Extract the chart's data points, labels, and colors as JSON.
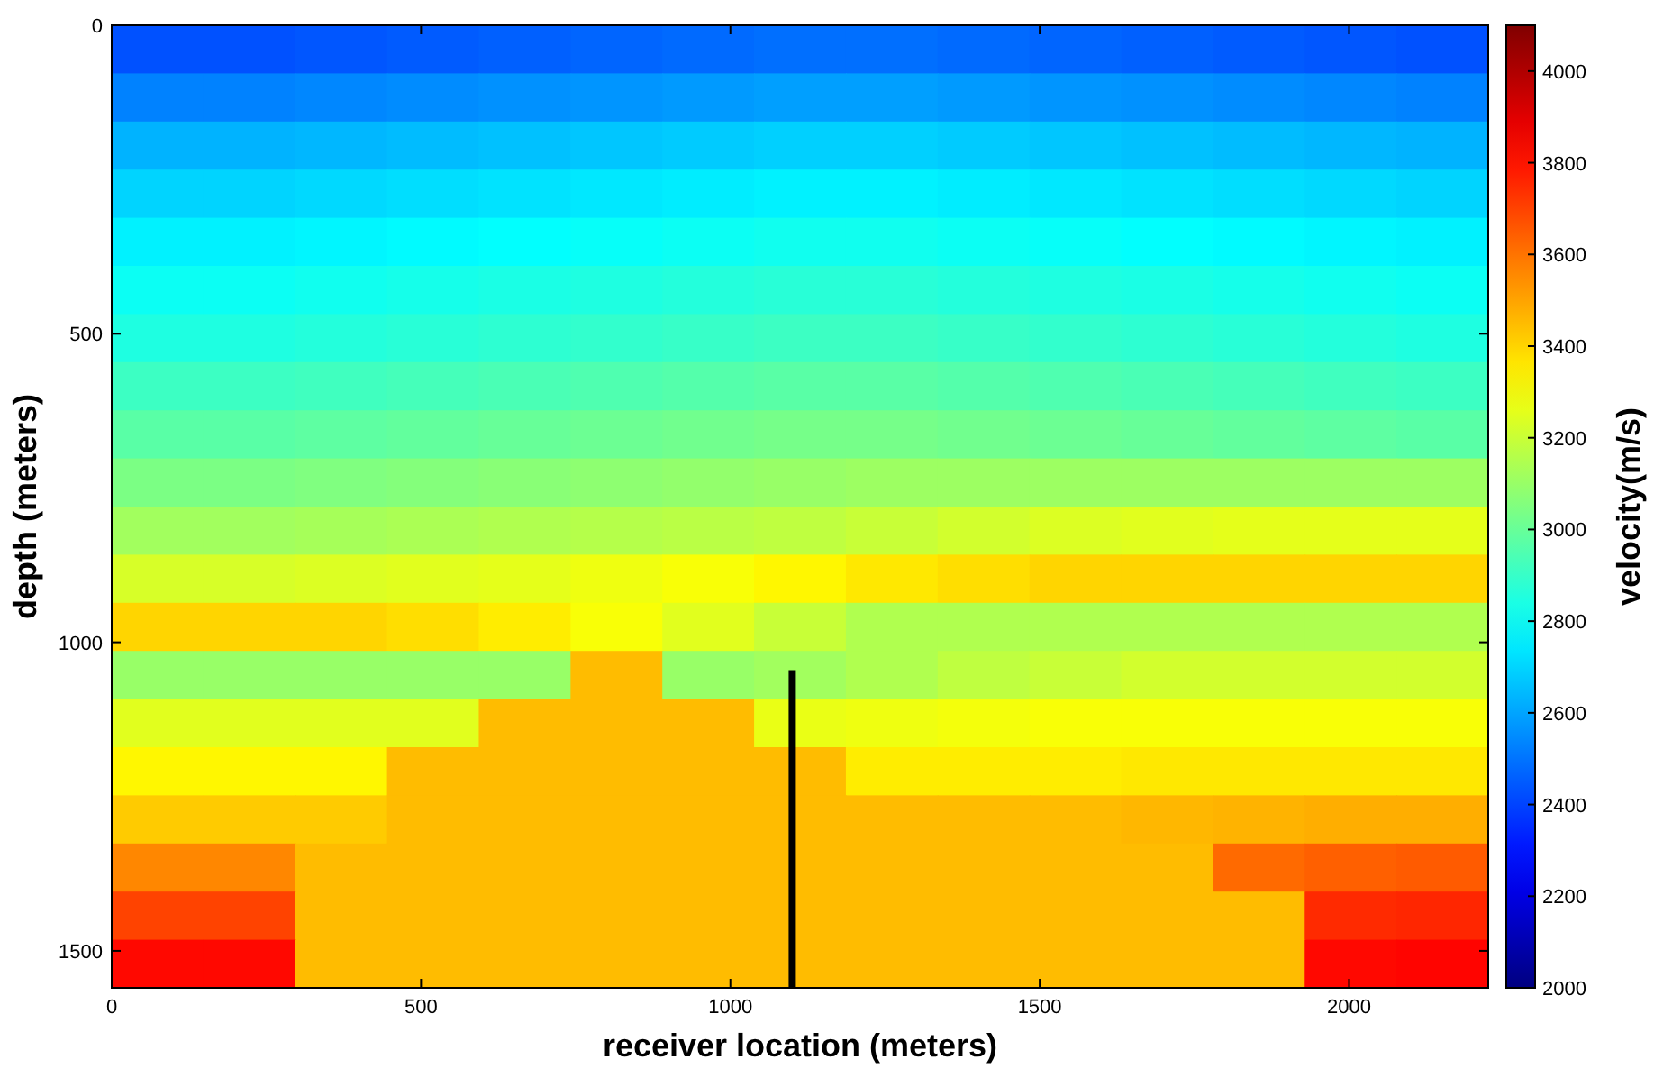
{
  "chart_data": {
    "type": "heatmap",
    "xlabel": "receiver location (meters)",
    "ylabel": "depth (meters)",
    "clabel": "velocity(m/s)",
    "xlim": [
      0,
      2225
    ],
    "xticks": [
      0,
      500,
      1000,
      1500,
      2000
    ],
    "ylim": [
      1560,
      0
    ],
    "yticks": [
      0,
      500,
      1000,
      1500
    ],
    "clim": [
      2000,
      4100
    ],
    "cticks": [
      2000,
      2200,
      2400,
      2600,
      2800,
      3000,
      3200,
      3400,
      3600,
      3800,
      4000
    ],
    "cells": [
      [
        2430,
        2430,
        2440,
        2450,
        2460,
        2470,
        2480,
        2490,
        2490,
        2480,
        2470,
        2460,
        2450,
        2440,
        2430
      ],
      [
        2530,
        2530,
        2540,
        2550,
        2560,
        2570,
        2580,
        2590,
        2590,
        2580,
        2570,
        2560,
        2550,
        2540,
        2530
      ],
      [
        2630,
        2630,
        2640,
        2650,
        2660,
        2670,
        2680,
        2690,
        2690,
        2680,
        2670,
        2660,
        2650,
        2640,
        2630
      ],
      [
        2700,
        2700,
        2710,
        2720,
        2730,
        2740,
        2750,
        2760,
        2760,
        2750,
        2740,
        2730,
        2720,
        2710,
        2700
      ],
      [
        2760,
        2760,
        2770,
        2780,
        2790,
        2800,
        2810,
        2820,
        2820,
        2810,
        2800,
        2790,
        2780,
        2770,
        2760
      ],
      [
        2810,
        2810,
        2820,
        2830,
        2840,
        2850,
        2860,
        2870,
        2870,
        2860,
        2850,
        2840,
        2830,
        2820,
        2810
      ],
      [
        2850,
        2850,
        2860,
        2870,
        2880,
        2890,
        2900,
        2910,
        2910,
        2900,
        2890,
        2880,
        2870,
        2860,
        2850
      ],
      [
        2910,
        2910,
        2920,
        2930,
        2940,
        2950,
        2960,
        2970,
        2970,
        2960,
        2950,
        2940,
        2930,
        2920,
        2910
      ],
      [
        2970,
        2970,
        2980,
        2990,
        3000,
        3010,
        3020,
        3030,
        3030,
        3020,
        3010,
        3000,
        2990,
        2980,
        2970
      ],
      [
        3040,
        3040,
        3050,
        3060,
        3070,
        3080,
        3090,
        3100,
        3110,
        3110,
        3110,
        3110,
        3110,
        3110,
        3110
      ],
      [
        3120,
        3120,
        3130,
        3140,
        3150,
        3160,
        3170,
        3180,
        3200,
        3220,
        3240,
        3250,
        3260,
        3260,
        3260
      ],
      [
        3230,
        3230,
        3240,
        3250,
        3260,
        3280,
        3300,
        3330,
        3360,
        3380,
        3400,
        3400,
        3400,
        3400,
        3400
      ],
      [
        3400,
        3400,
        3400,
        3380,
        3350,
        3300,
        3250,
        3200,
        3150,
        3150,
        3150,
        3150,
        3150,
        3150,
        3150
      ],
      [
        3100,
        3100,
        3100,
        3100,
        3100,
        3450,
        3100,
        3120,
        3150,
        3180,
        3200,
        3220,
        3220,
        3220,
        3220
      ],
      [
        3250,
        3250,
        3250,
        3250,
        3450,
        3450,
        3450,
        3270,
        3280,
        3290,
        3300,
        3300,
        3300,
        3300,
        3300
      ],
      [
        3330,
        3330,
        3330,
        3450,
        3450,
        3450,
        3450,
        3450,
        3350,
        3350,
        3350,
        3360,
        3360,
        3360,
        3360
      ],
      [
        3420,
        3420,
        3420,
        3450,
        3450,
        3450,
        3450,
        3450,
        3450,
        3450,
        3450,
        3460,
        3470,
        3480,
        3480
      ],
      [
        3560,
        3560,
        3450,
        3450,
        3450,
        3450,
        3450,
        3450,
        3450,
        3450,
        3450,
        3450,
        3620,
        3640,
        3650
      ],
      [
        3700,
        3700,
        3450,
        3450,
        3450,
        3450,
        3450,
        3450,
        3450,
        3450,
        3450,
        3450,
        3450,
        3750,
        3760
      ],
      [
        3820,
        3820,
        3450,
        3450,
        3450,
        3450,
        3450,
        3450,
        3450,
        3450,
        3450,
        3450,
        3450,
        3820,
        3830
      ]
    ],
    "series": [
      {
        "type": "line",
        "color": "#000000",
        "x": [
          1100,
          1100
        ],
        "values": [
          1045,
          1560
        ]
      }
    ]
  }
}
